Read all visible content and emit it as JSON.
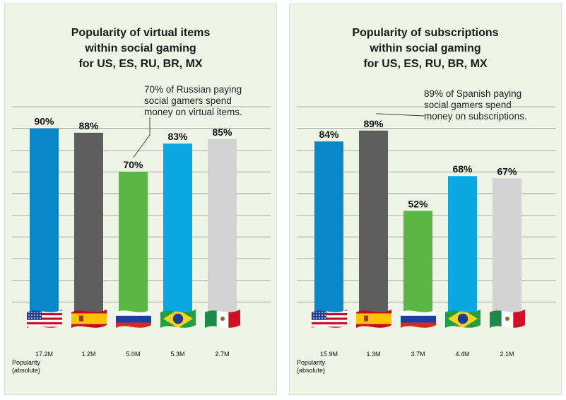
{
  "colors": {
    "background": "#eef4e6",
    "US": "#0a87c9",
    "ES": "#5e5e5e",
    "RU": "#5bb546",
    "BR": "#0aa7e0",
    "MX": "#d2d2d2",
    "gridline": "#9a9a9a"
  },
  "population_label": [
    "Popularity",
    "(absolute)"
  ],
  "chart_data": [
    {
      "type": "bar",
      "title": [
        "Popularity of virtual items",
        "within social gaming",
        "for US, ES, RU, BR, MX"
      ],
      "categories": [
        "US",
        "ES",
        "RU",
        "BR",
        "MX"
      ],
      "category_icons": [
        "us-flag-icon",
        "spain-flag-icon",
        "russia-flag-icon",
        "brazil-flag-icon",
        "mexico-flag-icon"
      ],
      "values": [
        90,
        88,
        70,
        83,
        85
      ],
      "value_labels": [
        "90%",
        "88%",
        "70%",
        "83%",
        "85%"
      ],
      "absolute_labels": [
        "17.2M",
        "1.2M",
        "5.0M",
        "5.3M",
        "2.7M"
      ],
      "annotation": {
        "lines": [
          "70% of Russian paying",
          "social gamers spend",
          "money on virtual items."
        ],
        "target": "RU"
      },
      "ylim": [
        0,
        100
      ],
      "grid": true,
      "xlabel": "",
      "ylabel": ""
    },
    {
      "type": "bar",
      "title": [
        "Popularity of subscriptions",
        "within social gaming",
        "for US, ES, RU, BR, MX"
      ],
      "categories": [
        "US",
        "ES",
        "RU",
        "BR",
        "MX"
      ],
      "category_icons": [
        "us-flag-icon",
        "spain-flag-icon",
        "russia-flag-icon",
        "brazil-flag-icon",
        "mexico-flag-icon"
      ],
      "values": [
        84,
        89,
        52,
        68,
        67
      ],
      "value_labels": [
        "84%",
        "89%",
        "52%",
        "68%",
        "67%"
      ],
      "absolute_labels": [
        "15.9M",
        "1.3M",
        "3.7M",
        "4.4M",
        "2.1M"
      ],
      "annotation": {
        "lines": [
          "89% of Spanish paying",
          "social gamers spend",
          "money on subscriptions."
        ],
        "target": "ES"
      },
      "ylim": [
        0,
        100
      ],
      "grid": true,
      "xlabel": "",
      "ylabel": ""
    }
  ]
}
